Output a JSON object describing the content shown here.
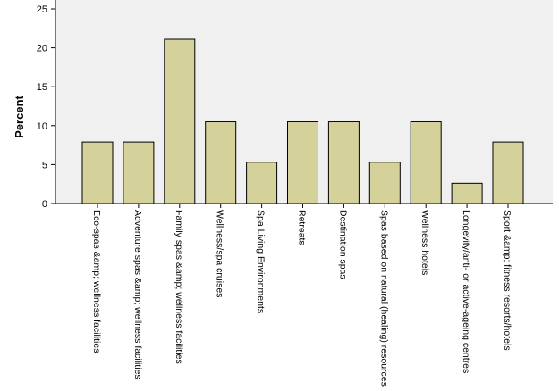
{
  "chart_data": {
    "type": "bar",
    "title": "",
    "xlabel": "",
    "ylabel": "Percent",
    "ylim": [
      0,
      25
    ],
    "yticks": [
      0,
      5,
      10,
      15,
      20,
      25
    ],
    "grid": false,
    "colors": {
      "bar_fill": "#d5d19a",
      "bar_stroke": "#000000",
      "plot_background": "#f0f0f0",
      "axis": "#000000"
    },
    "categories": [
      "Eco-spas &amp; wellness facilities",
      "Adventure spas &amp; wellness facilities",
      "Family spas &amp; wellness facilities",
      "Wellness/spa cruises",
      "Spa Living Environments",
      "Retreats",
      "Destination spas",
      "Spas based on natural (healing) resources",
      "Wellness hotels",
      "Longevity/anti- or active-ageing centres",
      "Sport &amp; fitness resorts/hotels"
    ],
    "values": [
      7.9,
      7.9,
      21.1,
      10.5,
      5.3,
      10.5,
      10.5,
      5.3,
      10.5,
      2.6,
      7.9
    ]
  }
}
